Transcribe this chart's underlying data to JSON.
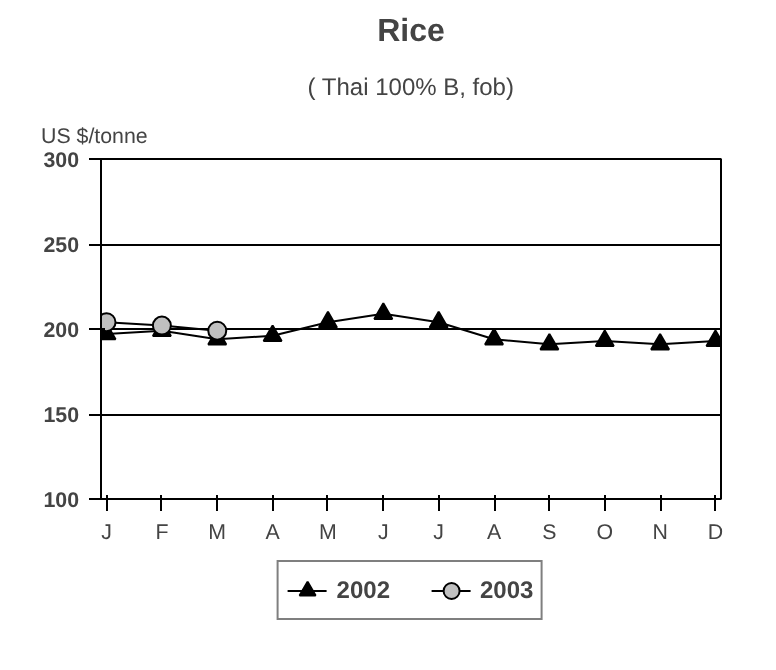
{
  "chart_data": {
    "type": "line",
    "title": "Rice",
    "subtitle": "( Thai 100% B, fob)",
    "ylabel": "US $/tonne",
    "categories": [
      "J",
      "F",
      "M",
      "A",
      "M",
      "J",
      "J",
      "A",
      "S",
      "O",
      "N",
      "D"
    ],
    "series": [
      {
        "name": "2002",
        "color": "#000000",
        "marker": "triangle",
        "values": [
          197,
          199,
          194,
          196,
          204,
          209,
          204,
          194,
          191,
          193,
          191,
          193
        ]
      },
      {
        "name": "2003",
        "color": "#c0c0c0",
        "marker": "circle",
        "values": [
          204,
          202,
          199,
          null,
          null,
          null,
          null,
          null,
          null,
          null,
          null,
          null
        ]
      }
    ],
    "ylim": [
      100,
      300
    ],
    "yticks": [
      100,
      150,
      200,
      250,
      300
    ],
    "grid": "y",
    "legend": "bottom",
    "line_style": "solid"
  }
}
